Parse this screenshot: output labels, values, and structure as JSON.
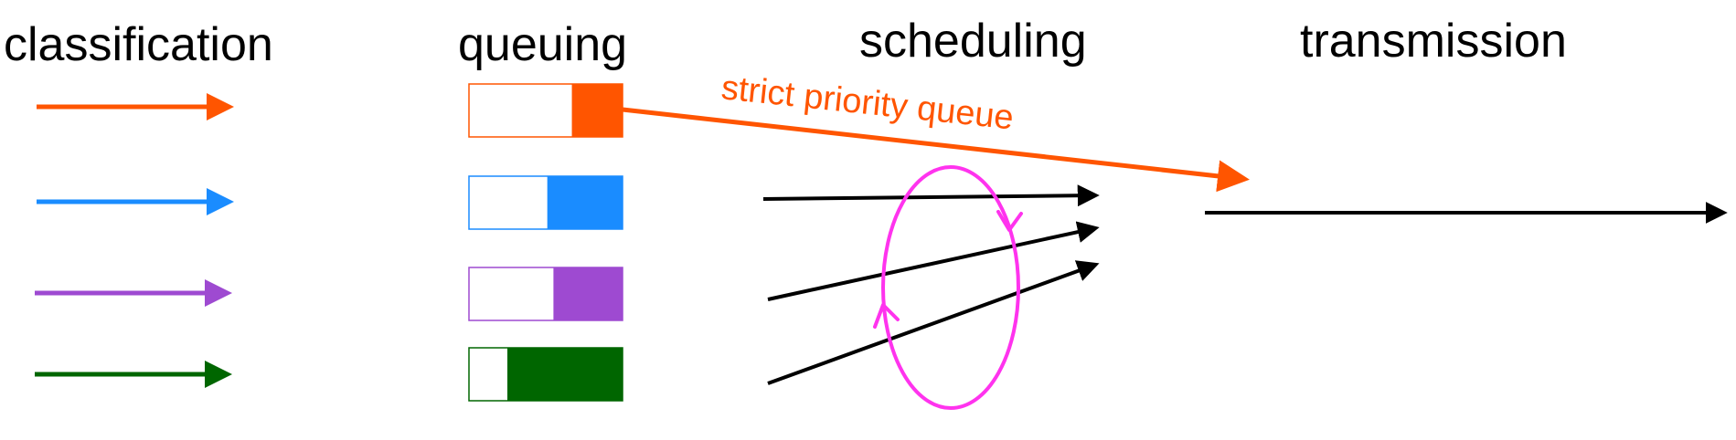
{
  "headings": {
    "classification": "classification",
    "queuing": "queuing",
    "scheduling": "scheduling",
    "transmission": "transmission"
  },
  "strict_priority_label": "strict priority queue",
  "classes": [
    {
      "color": "#ff5500",
      "queue_fill": 0.33
    },
    {
      "color": "#1a8cff",
      "queue_fill": 0.49
    },
    {
      "color": "#9e4ad1",
      "queue_fill": 0.45
    },
    {
      "color": "#006600",
      "queue_fill": 0.75
    }
  ],
  "round_robin_color": "#ff33ee",
  "link_color": "#000000"
}
